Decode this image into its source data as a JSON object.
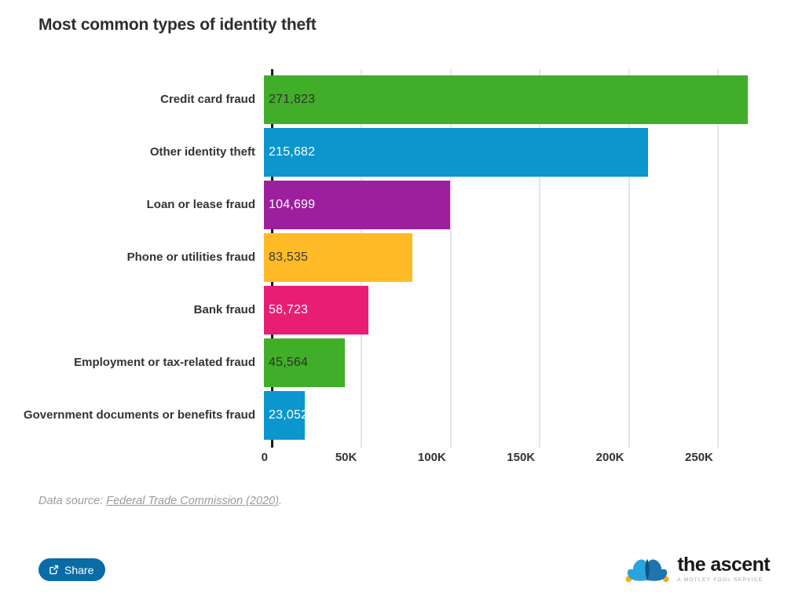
{
  "title": "Most common types of identity theft",
  "chart_data": {
    "type": "bar",
    "orientation": "horizontal",
    "title": "Most common types of identity theft",
    "xlabel": "",
    "ylabel": "",
    "categories": [
      "Credit card fraud",
      "Other identity theft",
      "Loan or lease fraud",
      "Phone or utilities fraud",
      "Bank fraud",
      "Employment or tax-related fraud",
      "Government documents or benefits fraud"
    ],
    "values": [
      271823,
      215682,
      104699,
      83535,
      58723,
      45564,
      23052
    ],
    "value_labels": [
      "271,823",
      "215,682",
      "104,699",
      "83,535",
      "58,723",
      "45,564",
      "23,052"
    ],
    "bar_colors": [
      "#41ae29",
      "#0b96cd",
      "#9c1f9e",
      "#ffba26",
      "#e81d74",
      "#41ae29",
      "#0b96cd"
    ],
    "value_text_colors": [
      "#303030",
      "#ffffff",
      "#ffffff",
      "#3a3a3a",
      "#ffffff",
      "#303030",
      "#ffffff"
    ],
    "axis_max": 284000,
    "xlim": [
      0,
      284000
    ],
    "grid": true,
    "legend": false,
    "data_labels": true,
    "ticks": [
      {
        "label": "0",
        "value": 0
      },
      {
        "label": "50K",
        "value": 50000
      },
      {
        "label": "100K",
        "value": 100000
      },
      {
        "label": "150K",
        "value": 150000
      },
      {
        "label": "200K",
        "value": 200000
      },
      {
        "label": "250K",
        "value": 250000
      }
    ]
  },
  "source": {
    "prefix": "Data source: ",
    "link_text": "Federal Trade Commission (2020)",
    "suffix": "."
  },
  "footer": {
    "share_label": "Share"
  },
  "logo": {
    "name": "the ascent",
    "tagline": "A MOTLEY FOOL SERVICE",
    "hat_light_blue": "#2aa4dc",
    "hat_dark_blue": "#1e74ad",
    "hat_center_blue": "#0e5286",
    "bell_gold": "#f2ae1c"
  },
  "colors": {
    "background": "#ffffff",
    "title_text": "#2d2d2d",
    "axis_line": "#1a1a1a",
    "gridline": "#e5e5e5",
    "tick_text": "#333333",
    "source_text": "#9b9b9b",
    "share_button": "#0a6ca6"
  }
}
